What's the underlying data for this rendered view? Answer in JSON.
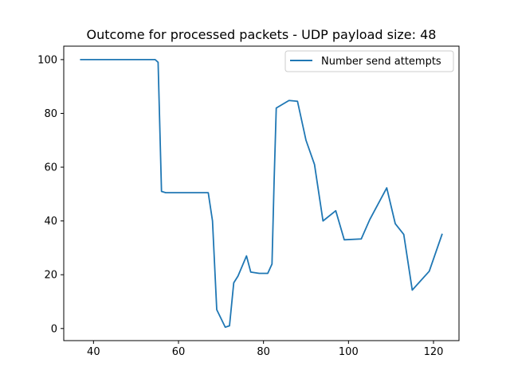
{
  "chart_data": {
    "type": "line",
    "title": "Outcome for processed packets - UDP payload size: 48",
    "xlabel": "",
    "ylabel": "",
    "xlim": [
      33,
      126
    ],
    "ylim": [
      -4.5,
      105
    ],
    "x_ticks": [
      40,
      60,
      80,
      100,
      120
    ],
    "y_ticks": [
      0,
      20,
      40,
      60,
      80,
      100
    ],
    "grid": false,
    "legend_position": "top-right",
    "series": [
      {
        "name": "Number send attempts",
        "color": "#1f77b4",
        "x": [
          37,
          54.5,
          55.2,
          56,
          57,
          60,
          67,
          68,
          69,
          71,
          72,
          73,
          74,
          76,
          77,
          79,
          81,
          82,
          82.5,
          83,
          86,
          88,
          90,
          92,
          94,
          97,
          99,
          103,
          105,
          109,
          111,
          113,
          115,
          119,
          122
        ],
        "y": [
          100,
          100,
          99,
          51,
          50.5,
          50.5,
          50.5,
          40,
          7,
          0.5,
          1,
          17,
          19.5,
          27,
          21,
          20.5,
          20.5,
          24,
          55,
          82,
          84.8,
          84.5,
          70,
          61,
          40,
          43.8,
          33,
          33.3,
          40.5,
          52.3,
          39,
          35,
          14.3,
          21.3,
          35
        ]
      }
    ]
  }
}
